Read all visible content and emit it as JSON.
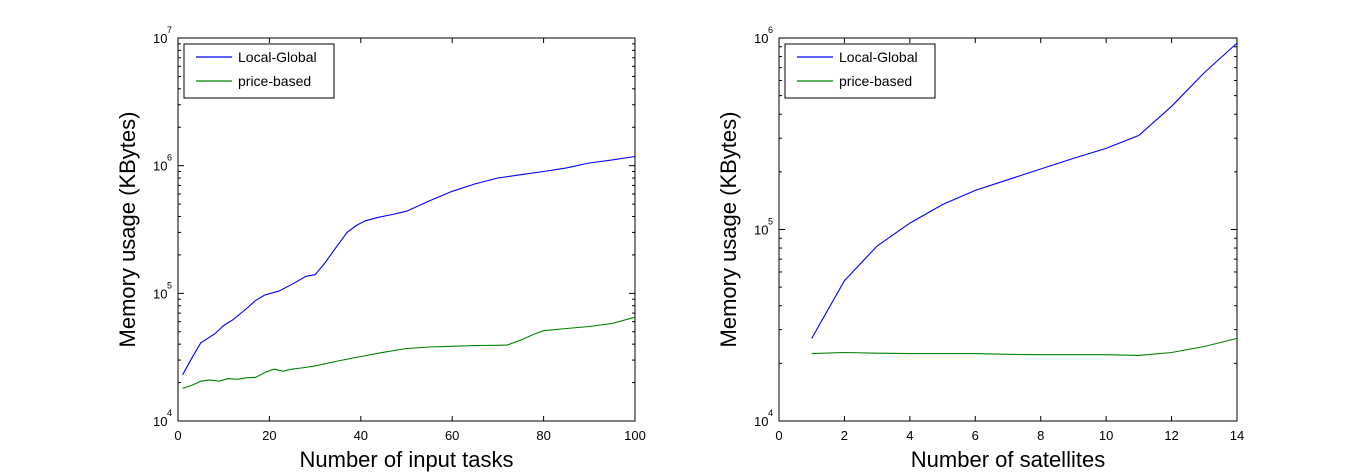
{
  "chart_data": [
    {
      "type": "line",
      "xlabel": "Number of input tasks",
      "ylabel": "Memory usage (KBytes)",
      "yscale": "log",
      "xlim": [
        0,
        100
      ],
      "ylim": [
        10000,
        10000000
      ],
      "xticks": [
        "0",
        "20",
        "40",
        "60",
        "80",
        "100"
      ],
      "yticks": [
        {
          "base": "10",
          "exp": "4"
        },
        {
          "base": "10",
          "exp": "5"
        },
        {
          "base": "10",
          "exp": "6"
        },
        {
          "base": "10",
          "exp": "7"
        }
      ],
      "grid": false,
      "legend_position": "top-left",
      "series": [
        {
          "name": "Local-Global",
          "color": "#0000ff",
          "x": [
            1,
            3,
            5,
            8,
            10,
            12,
            15,
            17,
            19,
            22,
            25,
            28,
            30,
            32,
            35,
            37,
            39,
            41,
            44,
            47,
            50,
            55,
            60,
            65,
            70,
            75,
            80,
            85,
            90,
            95,
            100
          ],
          "y": [
            23000,
            31000,
            41000,
            48000,
            56000,
            62000,
            76000,
            88000,
            97000,
            104000,
            118000,
            136000,
            140000,
            170000,
            240000,
            300000,
            340000,
            370000,
            395000,
            415000,
            440000,
            530000,
            630000,
            720000,
            800000,
            850000,
            900000,
            960000,
            1050000,
            1110000,
            1180000
          ]
        },
        {
          "name": "price-based",
          "color": "#008000",
          "x": [
            1,
            3,
            5,
            7,
            9,
            11,
            13,
            15,
            17,
            19,
            21,
            23,
            25,
            27,
            30,
            35,
            40,
            45,
            50,
            55,
            60,
            65,
            70,
            72,
            75,
            78,
            80,
            85,
            90,
            95,
            100
          ],
          "y": [
            18000,
            19000,
            20500,
            21000,
            20500,
            21500,
            21200,
            21800,
            22000,
            24000,
            25500,
            24500,
            25500,
            26000,
            27000,
            29500,
            32000,
            34500,
            37000,
            38000,
            38500,
            39000,
            39200,
            39300,
            43000,
            48000,
            51000,
            53000,
            55000,
            58000,
            65000
          ]
        }
      ]
    },
    {
      "type": "line",
      "xlabel": "Number of satellites",
      "ylabel": "Memory usage (KBytes)",
      "yscale": "log",
      "xlim": [
        0,
        14
      ],
      "ylim": [
        10000,
        1000000
      ],
      "xticks": [
        "0",
        "2",
        "4",
        "6",
        "8",
        "10",
        "12",
        "14"
      ],
      "yticks": [
        {
          "base": "10",
          "exp": "4"
        },
        {
          "base": "10",
          "exp": "5"
        },
        {
          "base": "10",
          "exp": "6"
        }
      ],
      "grid": false,
      "legend_position": "top-left",
      "series": [
        {
          "name": "Local-Global",
          "color": "#0000ff",
          "x": [
            1,
            2,
            3,
            4,
            5,
            6,
            7,
            8,
            9,
            10,
            11,
            12,
            13,
            14
          ],
          "y": [
            27000,
            54000,
            82000,
            108000,
            135000,
            160000,
            182000,
            207000,
            235000,
            265000,
            310000,
            440000,
            660000,
            940000
          ]
        },
        {
          "name": "price-based",
          "color": "#008000",
          "x": [
            1,
            2,
            3,
            4,
            5,
            6,
            7,
            8,
            9,
            10,
            11,
            12,
            13,
            14
          ],
          "y": [
            22500,
            22800,
            22600,
            22500,
            22500,
            22500,
            22300,
            22200,
            22200,
            22200,
            22000,
            22800,
            24500,
            27000
          ]
        }
      ]
    }
  ]
}
